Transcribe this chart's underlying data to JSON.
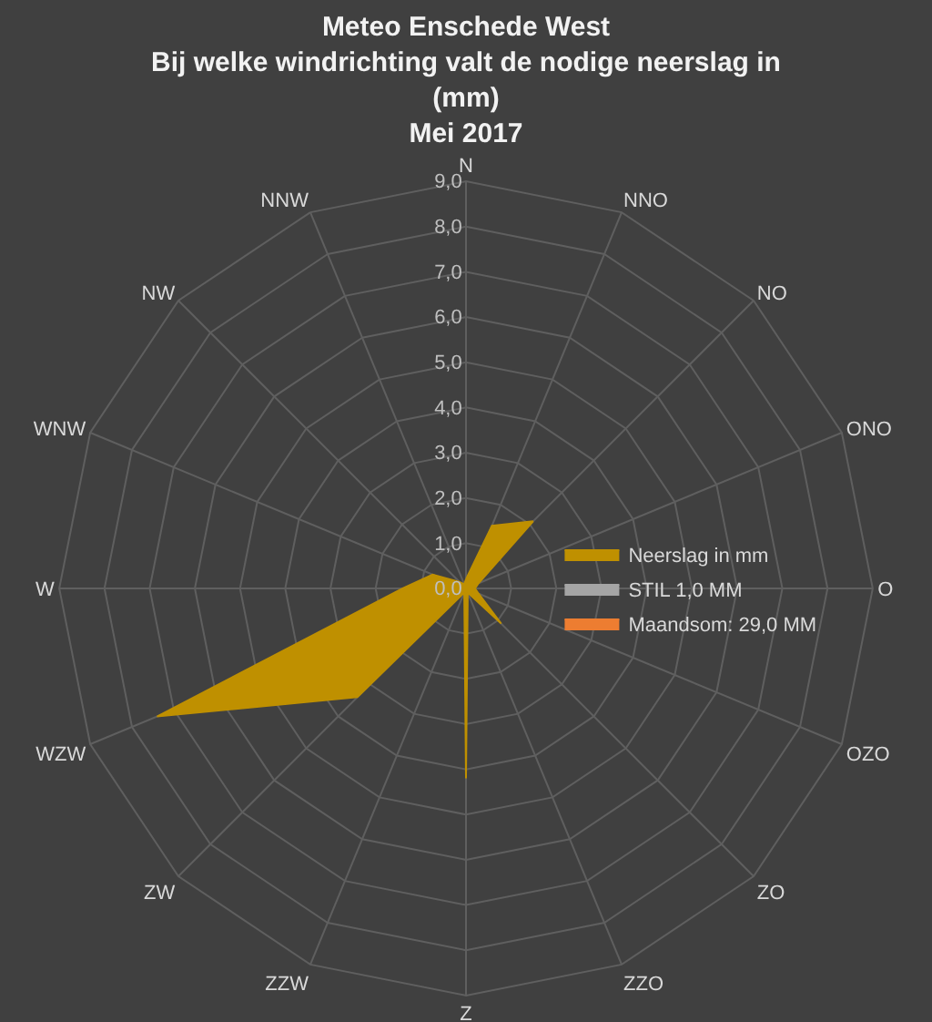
{
  "chart_data": {
    "type": "radar",
    "title": "Meteo Enschede West\nBij welke windrichting valt de nodige neerslag in\n(mm)\nMei 2017",
    "categories": [
      "N",
      "NNO",
      "NO",
      "ONO",
      "O",
      "OZO",
      "ZO",
      "ZZO",
      "Z",
      "ZZW",
      "ZW",
      "WZW",
      "W",
      "WNW",
      "NW",
      "NNW"
    ],
    "series": [
      {
        "name": "Neerslag in mm",
        "color": "#bf9000",
        "values": [
          0.2,
          1.5,
          2.1,
          0.3,
          0.2,
          0.3,
          1.1,
          0.1,
          4.2,
          0.1,
          3.4,
          7.4,
          1.4,
          0.8,
          0.2,
          0.1
        ]
      },
      {
        "name": "STIL 1,0 MM",
        "color": "#a5a5a5",
        "values": [
          null,
          null,
          null,
          null,
          null,
          null,
          null,
          null,
          null,
          null,
          null,
          null,
          null,
          null,
          null,
          null
        ]
      },
      {
        "name": "Maandsom: 29,0 MM",
        "color": "#ed7d31",
        "values": [
          null,
          null,
          null,
          null,
          null,
          null,
          null,
          null,
          null,
          null,
          null,
          null,
          null,
          null,
          null,
          null
        ]
      }
    ],
    "ylim": [
      0,
      9
    ],
    "yticks": [
      {
        "value": 0,
        "label": "0,0"
      },
      {
        "value": 1,
        "label": "1,0"
      },
      {
        "value": 2,
        "label": "2,0"
      },
      {
        "value": 3,
        "label": "3,0"
      },
      {
        "value": 4,
        "label": "4,0"
      },
      {
        "value": 5,
        "label": "5,0"
      },
      {
        "value": 6,
        "label": "6,0"
      },
      {
        "value": 7,
        "label": "7,0"
      },
      {
        "value": 8,
        "label": "8,0"
      },
      {
        "value": 9,
        "label": "9,0"
      }
    ],
    "grid": true,
    "legend": "right",
    "marker": "none"
  }
}
